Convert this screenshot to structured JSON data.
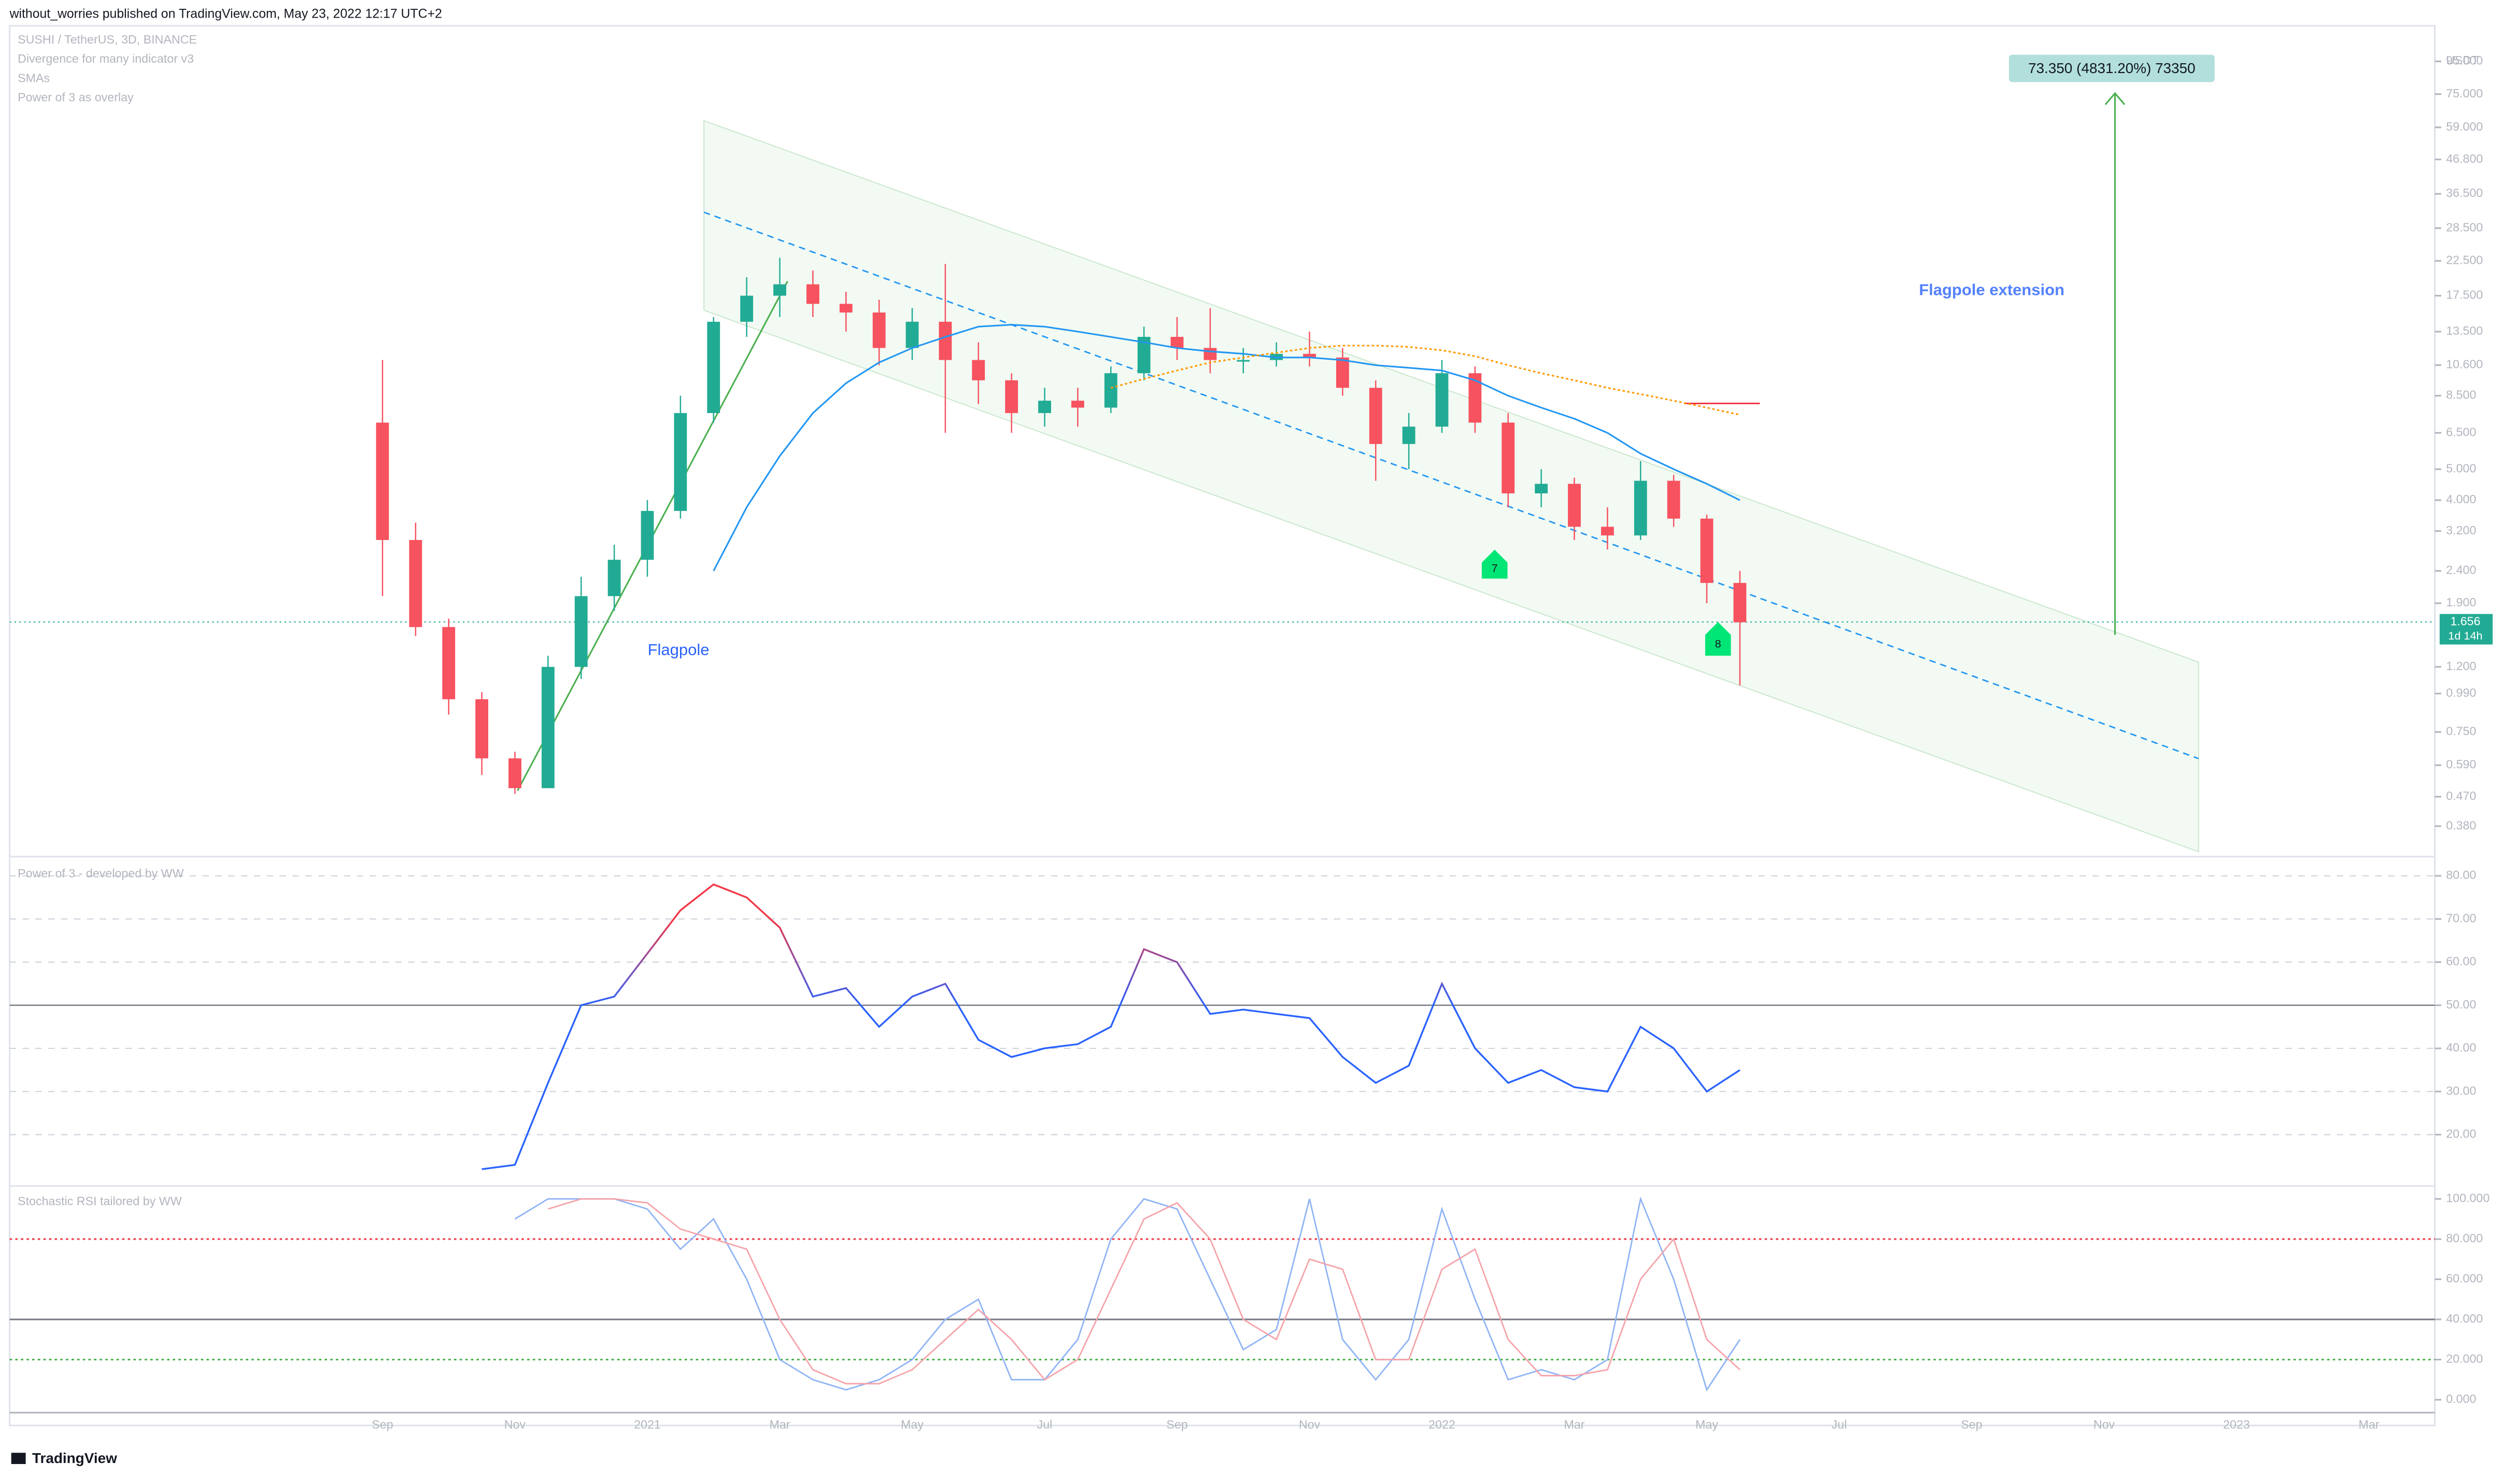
{
  "header": {
    "title": "without_worries published on TradingView.com, May 23, 2022 12:17 UTC+2"
  },
  "footer": {
    "brand": "TradingView"
  },
  "legend": [
    "SUSHI / TetherUS, 3D, BINANCE",
    "Divergence for many indicator v3",
    "SMAs",
    "Power of 3 as overlay"
  ],
  "annotations": {
    "flagpole": "Flagpole",
    "extension": "Flagpole extension",
    "target": "73.350 (4831.20%) 73350",
    "marker_a": "7",
    "marker_b": "8",
    "last_price": "1.656",
    "countdown": "1d 14h"
  },
  "chart_data": [
    {
      "type": "candlestick",
      "currency": "USDT",
      "log_scale": true,
      "up_color": "#22ab94",
      "down_color": "#f7525f",
      "categories": [
        "Sep",
        null,
        null,
        null,
        "Nov",
        null,
        null,
        null,
        "2021",
        null,
        null,
        null,
        "Mar",
        null,
        null,
        null,
        "May",
        null,
        null,
        null,
        "Jul",
        null,
        null,
        null,
        "Sep",
        null,
        null,
        null,
        "Nov",
        null,
        null,
        null,
        "2022",
        null,
        null,
        null,
        "Mar",
        null,
        null,
        null,
        "May",
        null,
        null,
        null,
        "Jul",
        null,
        null,
        null,
        "Sep",
        null,
        null,
        null,
        "Nov",
        null,
        null,
        null,
        "2023",
        null,
        null,
        null,
        "Mar",
        null
      ],
      "open": [
        7.0,
        3.0,
        1.6,
        0.95,
        0.62,
        0.5,
        1.2,
        2.0,
        2.6,
        3.7,
        7.5,
        14.5,
        17.5,
        19,
        16.5,
        15.5,
        12,
        14.5,
        11,
        9.5,
        7.5,
        8.2,
        7.8,
        10,
        13,
        12,
        11,
        11,
        11.5,
        11.2,
        9,
        6.0,
        6.8,
        10,
        7,
        4.2,
        4.5,
        3.3,
        3.1,
        4.6,
        3.5,
        2.2,
        null,
        null,
        null,
        null,
        null,
        null,
        null,
        null,
        null,
        null,
        null,
        null,
        null,
        null,
        null,
        null,
        null,
        null,
        null,
        null
      ],
      "high": [
        11,
        3.4,
        1.7,
        1.0,
        0.65,
        1.3,
        2.3,
        2.9,
        4.0,
        8.5,
        15,
        20,
        23,
        21,
        18,
        17,
        16,
        22,
        12.5,
        10,
        9,
        9,
        10.5,
        14,
        15,
        16,
        12,
        12.5,
        13.5,
        12,
        9.5,
        7.5,
        11,
        10.5,
        7.5,
        5,
        4.7,
        3.8,
        5.3,
        4.8,
        3.6,
        2.4,
        null,
        null,
        null,
        null,
        null,
        null,
        null,
        null,
        null,
        null,
        null,
        null,
        null,
        null,
        null,
        null,
        null,
        null,
        null,
        null
      ],
      "low": [
        2.0,
        1.5,
        0.85,
        0.55,
        0.48,
        0.5,
        1.1,
        1.8,
        2.3,
        3.5,
        7,
        13,
        15,
        15,
        13.5,
        10.6,
        11,
        6.5,
        8,
        6.5,
        6.8,
        6.8,
        7.5,
        9.5,
        11,
        10,
        10,
        10.5,
        10.5,
        8.5,
        4.6,
        5,
        6.5,
        6.5,
        3.8,
        3.8,
        3.0,
        2.8,
        3.0,
        3.3,
        1.9,
        1.05,
        null,
        null,
        null,
        null,
        null,
        null,
        null,
        null,
        null,
        null,
        null,
        null,
        null,
        null,
        null,
        null,
        null,
        null,
        null,
        null
      ],
      "close": [
        3.0,
        1.6,
        0.95,
        0.62,
        0.5,
        1.2,
        2.0,
        2.6,
        3.7,
        7.5,
        14.5,
        17.5,
        19,
        16.5,
        15.5,
        12,
        14.5,
        11,
        9.5,
        7.5,
        8.2,
        7.8,
        10,
        13,
        12,
        11,
        11,
        11.5,
        11.2,
        9,
        6.0,
        6.8,
        10,
        7,
        4.2,
        4.5,
        3.3,
        3.1,
        4.6,
        3.5,
        2.2,
        1.656,
        null,
        null,
        null,
        null,
        null,
        null,
        null,
        null,
        null,
        null,
        null,
        null,
        null,
        null,
        null,
        null,
        null,
        null,
        null,
        null
      ],
      "series": [
        {
          "color": "#2196f3",
          "values": [
            null,
            null,
            null,
            null,
            null,
            null,
            null,
            null,
            null,
            null,
            2.4,
            3.8,
            5.5,
            7.5,
            9.3,
            10.8,
            12,
            13,
            14,
            14.2,
            14,
            13.5,
            13,
            12.5,
            12,
            11.7,
            11.5,
            11.2,
            11.2,
            11,
            10.6,
            10.4,
            10.2,
            9.5,
            8.5,
            7.8,
            7.2,
            6.5,
            5.6,
            5.0,
            4.5,
            4.0,
            null,
            null,
            null,
            null,
            null,
            null,
            null,
            null,
            null,
            null,
            null,
            null,
            null,
            null,
            null,
            null,
            null,
            null,
            null,
            null
          ]
        },
        {
          "color": "#ff9800",
          "values": [
            null,
            null,
            null,
            null,
            null,
            null,
            null,
            null,
            null,
            null,
            null,
            null,
            null,
            null,
            null,
            null,
            null,
            null,
            null,
            null,
            null,
            null,
            9.0,
            9.6,
            10.2,
            10.8,
            11.2,
            11.6,
            12,
            12.2,
            12.2,
            12.1,
            11.8,
            11.3,
            10.6,
            10,
            9.5,
            9,
            8.6,
            8.2,
            7.8,
            7.4,
            null,
            null,
            null,
            null,
            null,
            null,
            null,
            null,
            null,
            null,
            null,
            null,
            null,
            null,
            null,
            null,
            null,
            null,
            null,
            null
          ]
        }
      ],
      "ylim": [
        0.305,
        120
      ],
      "yticks": [
        {
          "value": 0.38,
          "label": "0.380"
        },
        {
          "value": 0.47,
          "label": "0.470"
        },
        {
          "value": 0.59,
          "label": "0.590"
        },
        {
          "value": 0.75,
          "label": "0.750"
        },
        {
          "value": 0.99,
          "label": "0.990"
        },
        {
          "value": 1.2,
          "label": "1.200"
        },
        {
          "value": 1.9,
          "label": "1.900"
        },
        {
          "value": 2.4,
          "label": "2.400"
        },
        {
          "value": 3.2,
          "label": "3.200"
        },
        {
          "value": 4,
          "label": "4.000"
        },
        {
          "value": 5,
          "label": "5.000"
        },
        {
          "value": 6.5,
          "label": "6.500"
        },
        {
          "value": 8.5,
          "label": "8.500"
        },
        {
          "value": 10.6,
          "label": "10.600"
        },
        {
          "value": 13.5,
          "label": "13.500"
        },
        {
          "value": 17.5,
          "label": "17.500"
        },
        {
          "value": 22.5,
          "label": "22.500"
        },
        {
          "value": 28.5,
          "label": "28.500"
        },
        {
          "value": 36.5,
          "label": "36.500"
        },
        {
          "value": 46.8,
          "label": "46.800"
        },
        {
          "value": 59,
          "label": "59.000"
        },
        {
          "value": 75,
          "label": "75.000"
        },
        {
          "value": 95,
          "label": "95.000"
        }
      ]
    },
    {
      "type": "line",
      "title": "Power of 3 - developed by WW",
      "high_color": "#f23645",
      "low_color": "#2962ff",
      "values": [
        null,
        null,
        null,
        12,
        13,
        32,
        50,
        52,
        62,
        72,
        78,
        75,
        68,
        52,
        54,
        45,
        52,
        55,
        42,
        38,
        40,
        41,
        45,
        63,
        60,
        48,
        49,
        48,
        47,
        38,
        32,
        36,
        55,
        40,
        32,
        35,
        31,
        30,
        45,
        40,
        30,
        35,
        null,
        null,
        null,
        null,
        null,
        null,
        null,
        null,
        null,
        null,
        null,
        null,
        null,
        null,
        null,
        null,
        null,
        null,
        null,
        null
      ],
      "ylim": [
        9.2,
        82.6
      ],
      "yticks": [
        {
          "value": 20,
          "label": "20.00"
        },
        {
          "value": 30,
          "label": "30.00"
        },
        {
          "value": 40,
          "label": "40.00"
        },
        {
          "value": 50,
          "label": "50.00"
        },
        {
          "value": 60,
          "label": "60.00"
        },
        {
          "value": 70,
          "label": "70.00"
        },
        {
          "value": 80,
          "label": "80.00"
        }
      ]
    },
    {
      "type": "line",
      "title": "Stochastic RSI tailored by WW",
      "series": [
        {
          "color": "#90b4f5",
          "values": [
            null,
            null,
            null,
            null,
            90,
            100,
            100,
            100,
            95,
            75,
            90,
            60,
            20,
            10,
            5,
            10,
            20,
            40,
            50,
            10,
            10,
            30,
            80,
            100,
            95,
            60,
            25,
            35,
            100,
            30,
            10,
            30,
            95,
            50,
            10,
            15,
            10,
            20,
            100,
            60,
            5,
            30,
            null,
            null,
            null,
            null,
            null,
            null,
            null,
            null,
            null,
            null,
            null,
            null,
            null,
            null,
            null,
            null,
            null,
            null,
            null,
            null
          ]
        },
        {
          "color": "#f5a3aa",
          "values": [
            null,
            null,
            null,
            null,
            null,
            95,
            100,
            100,
            98,
            85,
            80,
            75,
            40,
            15,
            8,
            8,
            15,
            30,
            45,
            30,
            10,
            20,
            55,
            90,
            98,
            80,
            40,
            30,
            70,
            65,
            20,
            20,
            65,
            75,
            30,
            12,
            12,
            15,
            60,
            80,
            30,
            15,
            null,
            null,
            null,
            null,
            null,
            null,
            null,
            null,
            null,
            null,
            null,
            null,
            null,
            null,
            null,
            null,
            null,
            null,
            null,
            null
          ]
        }
      ],
      "ylim": [
        -7.2,
        103.2
      ],
      "yticks": [
        {
          "value": 0,
          "label": "0.000"
        },
        {
          "value": 20,
          "label": "20.000"
        },
        {
          "value": 40,
          "label": "40.000"
        },
        {
          "value": 60,
          "label": "60.000"
        },
        {
          "value": 80,
          "label": "80.000"
        },
        {
          "value": 100,
          "label": "100.000"
        }
      ]
    }
  ]
}
